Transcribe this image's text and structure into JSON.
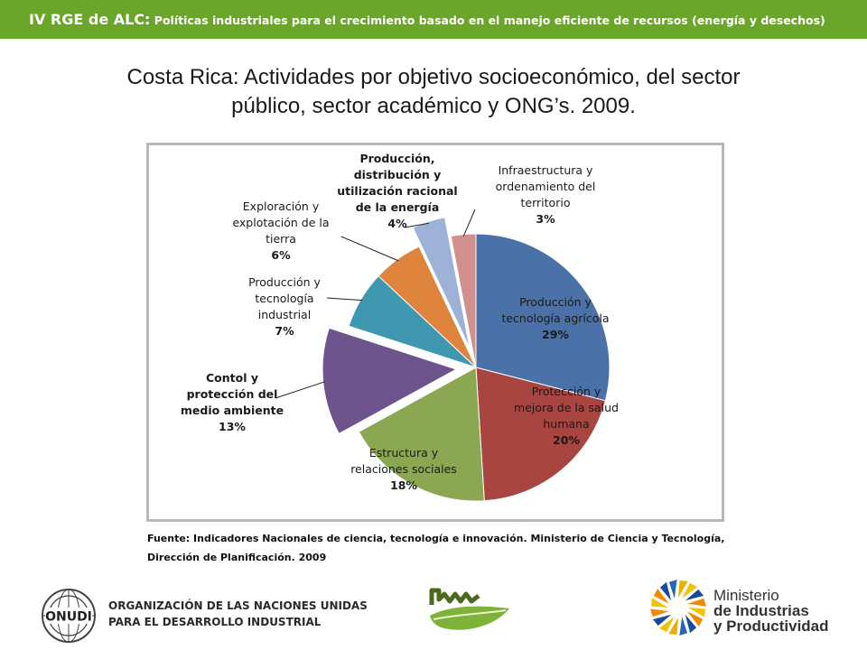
{
  "header": {
    "prefix": "IV RGE de ALC:",
    "subtitle": " Políticas industriales para el crecimiento basado en el manejo eficiente de recursos  (energía y desechos)"
  },
  "colors": {
    "header_bg": "#6aa629"
  },
  "chart_data": {
    "type": "pie",
    "title_line1": "Costa Rica: Actividades por objetivo socioeconómico, del sector",
    "title_line2": "público, sector académico y ONG’s. 2009.",
    "slices": [
      {
        "label": "Producción y tecnología agrícola",
        "lines": [
          "Producción y",
          "tecnología agrícola"
        ],
        "pct_label": "29%",
        "value": 29,
        "color": "#4a72a8",
        "exploded": false
      },
      {
        "label": "Protección y mejora de la salud humana",
        "lines": [
          "Protección y",
          "mejora de la salud",
          "humana"
        ],
        "pct_label": "20%",
        "value": 20,
        "color": "#a84540",
        "exploded": false
      },
      {
        "label": "Estructura y relaciones sociales",
        "lines": [
          "Estructura y",
          "relaciones sociales"
        ],
        "pct_label": "18%",
        "value": 18,
        "color": "#8ba753",
        "exploded": false
      },
      {
        "label": "Contol y protección del medio ambiente",
        "lines": [
          "Contol y",
          "protección del",
          "medio ambiente"
        ],
        "pct_label": "13%",
        "value": 13,
        "color": "#6d548c",
        "exploded": true
      },
      {
        "label": "Producción y tecnología industrial",
        "lines": [
          "Producción y",
          "tecnología",
          "industrial"
        ],
        "pct_label": "7%",
        "value": 7,
        "color": "#3f98b0",
        "exploded": false
      },
      {
        "label": "Exploración y explotación de la tierra",
        "lines": [
          "Exploración y",
          "explotación de la",
          "tierra"
        ],
        "pct_label": "6%",
        "value": 6,
        "color": "#de843d",
        "exploded": false
      },
      {
        "label": "Producción, distribución y utilización racional de la energía",
        "lines": [
          "Producción,",
          "distribución y",
          "utilización racional",
          "de la energía"
        ],
        "pct_label": "4%",
        "value": 4,
        "color": "#9eb1d6",
        "exploded": true
      },
      {
        "label": "Infraestructura y ordenamiento del territorio",
        "lines": [
          "Infraestructura y",
          "ordenamiento del",
          "territorio"
        ],
        "pct_label": "3%",
        "value": 3,
        "color": "#d18f8d",
        "exploded": false
      }
    ]
  },
  "source": {
    "line1": "Fuente: Indicadores Nacionales de ciencia, tecnología e innovación. Ministerio de Ciencia y Tecnología,",
    "line2": "Dirección de Planificación. 2009"
  },
  "footer": {
    "onudi_logo_text": "ONUDI",
    "org_line1": "ORGANIZACIÓN DE LAS NACIONES UNIDAS",
    "org_line2": "PARA EL DESARROLLO INDUSTRIAL",
    "ministry_line1": "Ministerio",
    "ministry_line2": "de Industrias",
    "ministry_line3": "y Productividad"
  }
}
